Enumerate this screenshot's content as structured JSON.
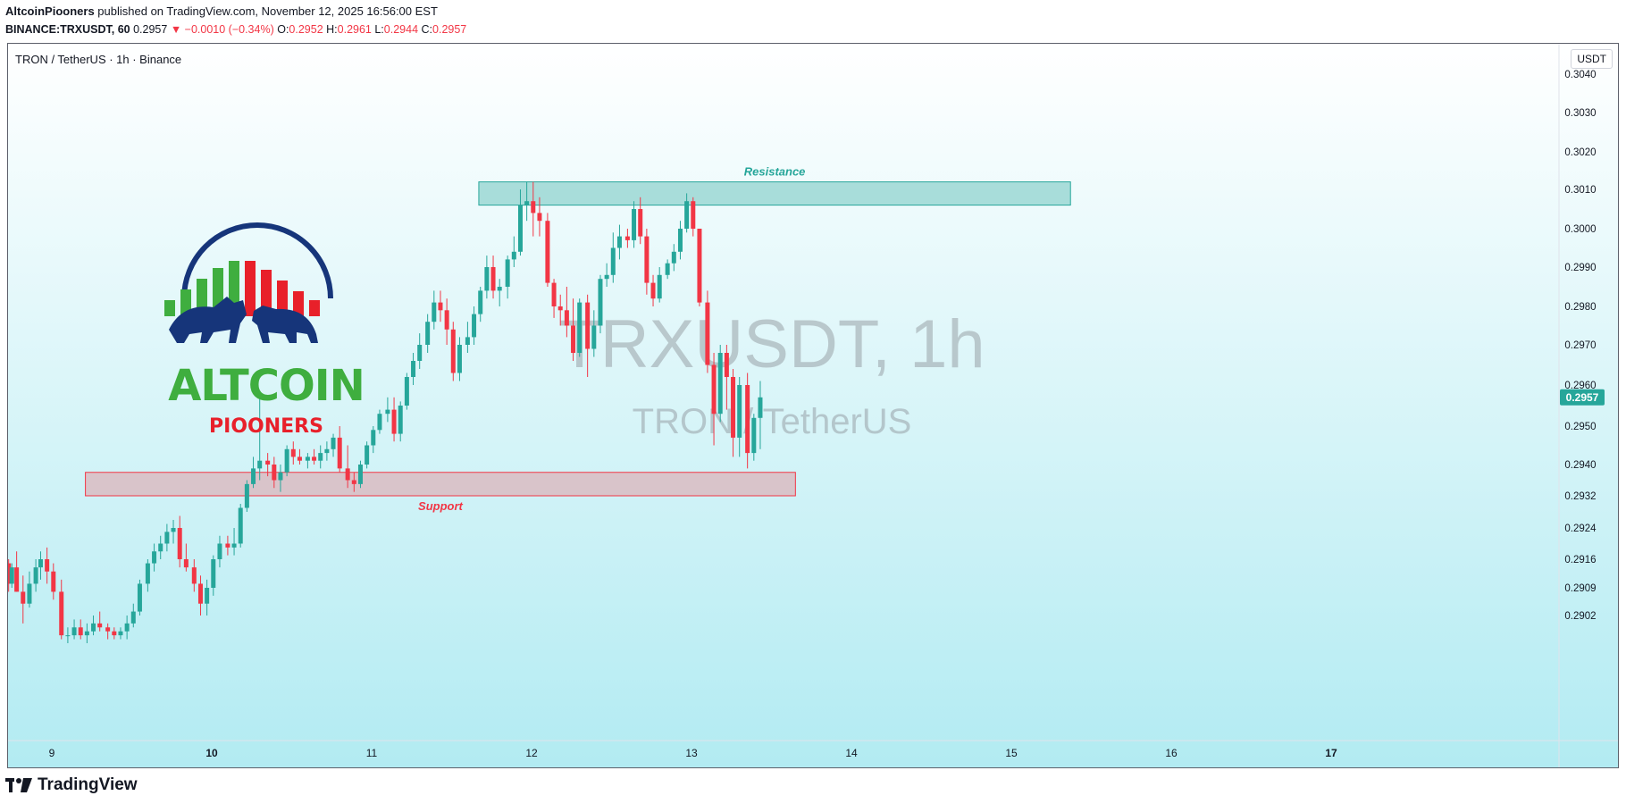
{
  "header": {
    "author": "AltcoinPiooners",
    "published": " published on TradingView.com, November 12, 2025 16:56:00 EST",
    "symbol": "BINANCE:TRXUSDT, 60",
    "price": "0.2957",
    "change": "▼ −0.0010 (−0.34%)",
    "ohlc": {
      "o_label": "O:",
      "o": "0.2952",
      "h_label": "H:",
      "h": "0.2961",
      "l_label": "L:",
      "l": "0.2944",
      "c_label": "C:",
      "c": "0.2957"
    }
  },
  "chart_title": "TRON / TetherUS · 1h · Binance",
  "logo": {
    "line1": "ALTCOIN",
    "line2": "PIOONERS"
  },
  "footer_brand": "TradingView",
  "colors": {
    "up": "#26a69a",
    "down": "#f23645",
    "resistance": "#26a69a",
    "support": "#f23645",
    "bg_top": "#ffffff",
    "bg_bottom": "#b2ebf2"
  },
  "chart_data": {
    "type": "candlestick",
    "title": "TRON / TetherUS · 1h · Binance",
    "watermark": [
      "TRXUSDT, 1h",
      "TRON / TetherUS"
    ],
    "unit": "USDT",
    "y_ticks": [
      "0.3040",
      "0.3030",
      "0.3020",
      "0.3010",
      "0.3000",
      "0.2990",
      "0.2980",
      "0.2970",
      "0.2960",
      "0.2950",
      "0.2940",
      "0.2932",
      "0.2924",
      "0.2916",
      "0.2909",
      "0.2902"
    ],
    "x_ticks": [
      {
        "label": "9",
        "x": 0.0
      },
      {
        "label": "10",
        "x": 1.0
      },
      {
        "label": "11",
        "x": 2.0
      },
      {
        "label": "12",
        "x": 3.0
      },
      {
        "label": "13",
        "x": 4.0
      },
      {
        "label": "14",
        "x": 5.0
      },
      {
        "label": "15",
        "x": 6.0
      },
      {
        "label": "16",
        "x": 7.0
      },
      {
        "label": "17",
        "x": 8.0
      }
    ],
    "last_price": "0.2957",
    "zones": [
      {
        "label": "Resistance",
        "x0": 2.67,
        "x1": 6.37,
        "y0": 0.3006,
        "y1": 0.3012
      },
      {
        "label": "Support",
        "x0": 0.21,
        "x1": 4.65,
        "y0": 0.2932,
        "y1": 0.2938
      }
    ],
    "candles": [
      {
        "t": -0.27,
        "o": 0.2915,
        "h": 0.2916,
        "l": 0.2908,
        "c": 0.291
      },
      {
        "t": -0.25,
        "o": 0.291,
        "h": 0.2915,
        "l": 0.2909,
        "c": 0.2914
      },
      {
        "t": -0.22,
        "o": 0.2914,
        "h": 0.2918,
        "l": 0.2908,
        "c": 0.2908
      },
      {
        "t": -0.18,
        "o": 0.2908,
        "h": 0.2912,
        "l": 0.29,
        "c": 0.2905
      },
      {
        "t": -0.14,
        "o": 0.2905,
        "h": 0.2913,
        "l": 0.2904,
        "c": 0.291
      },
      {
        "t": -0.1,
        "o": 0.291,
        "h": 0.2916,
        "l": 0.2908,
        "c": 0.2914
      },
      {
        "t": -0.07,
        "o": 0.2914,
        "h": 0.2918,
        "l": 0.2911,
        "c": 0.2916
      },
      {
        "t": -0.03,
        "o": 0.2916,
        "h": 0.2919,
        "l": 0.291,
        "c": 0.2913
      },
      {
        "t": 0.01,
        "o": 0.2913,
        "h": 0.2915,
        "l": 0.2906,
        "c": 0.2908
      },
      {
        "t": 0.06,
        "o": 0.2908,
        "h": 0.2911,
        "l": 0.2896,
        "c": 0.2897
      },
      {
        "t": 0.1,
        "o": 0.2897,
        "h": 0.2899,
        "l": 0.2895,
        "c": 0.2897
      },
      {
        "t": 0.14,
        "o": 0.2897,
        "h": 0.2901,
        "l": 0.2896,
        "c": 0.2899
      },
      {
        "t": 0.18,
        "o": 0.2899,
        "h": 0.2901,
        "l": 0.2896,
        "c": 0.2897
      },
      {
        "t": 0.22,
        "o": 0.2897,
        "h": 0.29,
        "l": 0.2895,
        "c": 0.2898
      },
      {
        "t": 0.26,
        "o": 0.2898,
        "h": 0.2902,
        "l": 0.2897,
        "c": 0.29
      },
      {
        "t": 0.3,
        "o": 0.29,
        "h": 0.2903,
        "l": 0.2898,
        "c": 0.2899
      },
      {
        "t": 0.35,
        "o": 0.2899,
        "h": 0.29,
        "l": 0.2896,
        "c": 0.2898
      },
      {
        "t": 0.39,
        "o": 0.2898,
        "h": 0.2899,
        "l": 0.2896,
        "c": 0.2897
      },
      {
        "t": 0.43,
        "o": 0.2897,
        "h": 0.2899,
        "l": 0.2896,
        "c": 0.2898
      },
      {
        "t": 0.47,
        "o": 0.2898,
        "h": 0.2902,
        "l": 0.2896,
        "c": 0.29
      },
      {
        "t": 0.51,
        "o": 0.29,
        "h": 0.2905,
        "l": 0.2899,
        "c": 0.2903
      },
      {
        "t": 0.55,
        "o": 0.2903,
        "h": 0.2911,
        "l": 0.2902,
        "c": 0.291
      },
      {
        "t": 0.6,
        "o": 0.291,
        "h": 0.2916,
        "l": 0.2908,
        "c": 0.2915
      },
      {
        "t": 0.64,
        "o": 0.2915,
        "h": 0.292,
        "l": 0.2913,
        "c": 0.2918
      },
      {
        "t": 0.68,
        "o": 0.2918,
        "h": 0.2922,
        "l": 0.2916,
        "c": 0.292
      },
      {
        "t": 0.72,
        "o": 0.292,
        "h": 0.2925,
        "l": 0.2918,
        "c": 0.2923
      },
      {
        "t": 0.76,
        "o": 0.2923,
        "h": 0.2926,
        "l": 0.292,
        "c": 0.2924
      },
      {
        "t": 0.8,
        "o": 0.2924,
        "h": 0.2927,
        "l": 0.2914,
        "c": 0.2916
      },
      {
        "t": 0.84,
        "o": 0.2916,
        "h": 0.292,
        "l": 0.2913,
        "c": 0.2914
      },
      {
        "t": 0.89,
        "o": 0.2914,
        "h": 0.2916,
        "l": 0.2908,
        "c": 0.291
      },
      {
        "t": 0.93,
        "o": 0.291,
        "h": 0.2912,
        "l": 0.2902,
        "c": 0.2905
      },
      {
        "t": 0.97,
        "o": 0.2905,
        "h": 0.2911,
        "l": 0.2902,
        "c": 0.2909
      },
      {
        "t": 1.01,
        "o": 0.2909,
        "h": 0.2917,
        "l": 0.2907,
        "c": 0.2916
      },
      {
        "t": 1.05,
        "o": 0.2916,
        "h": 0.2922,
        "l": 0.2914,
        "c": 0.292
      },
      {
        "t": 1.1,
        "o": 0.292,
        "h": 0.2922,
        "l": 0.2917,
        "c": 0.2919
      },
      {
        "t": 1.14,
        "o": 0.2919,
        "h": 0.2924,
        "l": 0.2917,
        "c": 0.292
      },
      {
        "t": 1.18,
        "o": 0.292,
        "h": 0.293,
        "l": 0.2919,
        "c": 0.2929
      },
      {
        "t": 1.22,
        "o": 0.2929,
        "h": 0.2936,
        "l": 0.2928,
        "c": 0.2935
      },
      {
        "t": 1.26,
        "o": 0.2935,
        "h": 0.2942,
        "l": 0.2934,
        "c": 0.2939
      },
      {
        "t": 1.3,
        "o": 0.2939,
        "h": 0.2958,
        "l": 0.2936,
        "c": 0.2941
      },
      {
        "t": 1.35,
        "o": 0.2941,
        "h": 0.2943,
        "l": 0.2937,
        "c": 0.294
      },
      {
        "t": 1.39,
        "o": 0.294,
        "h": 0.2942,
        "l": 0.2934,
        "c": 0.2936
      },
      {
        "t": 1.43,
        "o": 0.2936,
        "h": 0.294,
        "l": 0.2933,
        "c": 0.2938
      },
      {
        "t": 1.47,
        "o": 0.2938,
        "h": 0.2945,
        "l": 0.2937,
        "c": 0.2944
      },
      {
        "t": 1.51,
        "o": 0.2944,
        "h": 0.2946,
        "l": 0.294,
        "c": 0.2942
      },
      {
        "t": 1.55,
        "o": 0.2942,
        "h": 0.2944,
        "l": 0.294,
        "c": 0.2941
      },
      {
        "t": 1.6,
        "o": 0.2941,
        "h": 0.2943,
        "l": 0.2939,
        "c": 0.2942
      },
      {
        "t": 1.64,
        "o": 0.2942,
        "h": 0.2944,
        "l": 0.294,
        "c": 0.2941
      },
      {
        "t": 1.68,
        "o": 0.2941,
        "h": 0.2945,
        "l": 0.2939,
        "c": 0.2943
      },
      {
        "t": 1.72,
        "o": 0.2943,
        "h": 0.2946,
        "l": 0.2941,
        "c": 0.2944
      },
      {
        "t": 1.76,
        "o": 0.2944,
        "h": 0.2948,
        "l": 0.2942,
        "c": 0.2947
      },
      {
        "t": 1.8,
        "o": 0.2947,
        "h": 0.295,
        "l": 0.2938,
        "c": 0.2939
      },
      {
        "t": 1.85,
        "o": 0.2939,
        "h": 0.2945,
        "l": 0.2934,
        "c": 0.2936
      },
      {
        "t": 1.89,
        "o": 0.2936,
        "h": 0.2938,
        "l": 0.2933,
        "c": 0.2935
      },
      {
        "t": 1.93,
        "o": 0.2935,
        "h": 0.2941,
        "l": 0.2934,
        "c": 0.294
      },
      {
        "t": 1.97,
        "o": 0.294,
        "h": 0.2946,
        "l": 0.2939,
        "c": 0.2945
      },
      {
        "t": 2.01,
        "o": 0.2945,
        "h": 0.295,
        "l": 0.2943,
        "c": 0.2949
      },
      {
        "t": 2.05,
        "o": 0.2949,
        "h": 0.2954,
        "l": 0.2948,
        "c": 0.2953
      },
      {
        "t": 2.1,
        "o": 0.2953,
        "h": 0.2957,
        "l": 0.2951,
        "c": 0.2954
      },
      {
        "t": 2.14,
        "o": 0.2954,
        "h": 0.2957,
        "l": 0.2946,
        "c": 0.2948
      },
      {
        "t": 2.18,
        "o": 0.2948,
        "h": 0.2956,
        "l": 0.2946,
        "c": 0.2955
      },
      {
        "t": 2.22,
        "o": 0.2955,
        "h": 0.2963,
        "l": 0.2954,
        "c": 0.2962
      },
      {
        "t": 2.26,
        "o": 0.2962,
        "h": 0.2968,
        "l": 0.296,
        "c": 0.2966
      },
      {
        "t": 2.3,
        "o": 0.2966,
        "h": 0.2973,
        "l": 0.2964,
        "c": 0.297
      },
      {
        "t": 2.35,
        "o": 0.297,
        "h": 0.2978,
        "l": 0.2968,
        "c": 0.2976
      },
      {
        "t": 2.39,
        "o": 0.2976,
        "h": 0.2984,
        "l": 0.2974,
        "c": 0.2981
      },
      {
        "t": 2.43,
        "o": 0.2981,
        "h": 0.2984,
        "l": 0.2976,
        "c": 0.2979
      },
      {
        "t": 2.47,
        "o": 0.2979,
        "h": 0.2982,
        "l": 0.297,
        "c": 0.2974
      },
      {
        "t": 2.51,
        "o": 0.2974,
        "h": 0.2976,
        "l": 0.2961,
        "c": 0.2963
      },
      {
        "t": 2.55,
        "o": 0.2963,
        "h": 0.2972,
        "l": 0.2961,
        "c": 0.297
      },
      {
        "t": 2.6,
        "o": 0.297,
        "h": 0.2976,
        "l": 0.2968,
        "c": 0.2972
      },
      {
        "t": 2.64,
        "o": 0.2972,
        "h": 0.298,
        "l": 0.297,
        "c": 0.2978
      },
      {
        "t": 2.68,
        "o": 0.2978,
        "h": 0.2985,
        "l": 0.2976,
        "c": 0.2984
      },
      {
        "t": 2.72,
        "o": 0.2984,
        "h": 0.2993,
        "l": 0.2982,
        "c": 0.299
      },
      {
        "t": 2.76,
        "o": 0.299,
        "h": 0.2993,
        "l": 0.2982,
        "c": 0.2984
      },
      {
        "t": 2.8,
        "o": 0.2984,
        "h": 0.2987,
        "l": 0.298,
        "c": 0.2985
      },
      {
        "t": 2.85,
        "o": 0.2985,
        "h": 0.2993,
        "l": 0.2982,
        "c": 0.2992
      },
      {
        "t": 2.89,
        "o": 0.2992,
        "h": 0.2998,
        "l": 0.299,
        "c": 0.2994
      },
      {
        "t": 2.93,
        "o": 0.2994,
        "h": 0.301,
        "l": 0.2993,
        "c": 0.3006
      },
      {
        "t": 2.97,
        "o": 0.3006,
        "h": 0.3012,
        "l": 0.3002,
        "c": 0.3007
      },
      {
        "t": 3.01,
        "o": 0.3007,
        "h": 0.3012,
        "l": 0.2998,
        "c": 0.3004
      },
      {
        "t": 3.05,
        "o": 0.3004,
        "h": 0.3008,
        "l": 0.2998,
        "c": 0.3002
      },
      {
        "t": 3.1,
        "o": 0.3002,
        "h": 0.3004,
        "l": 0.2985,
        "c": 0.2986
      },
      {
        "t": 3.14,
        "o": 0.2986,
        "h": 0.2987,
        "l": 0.2977,
        "c": 0.298
      },
      {
        "t": 3.18,
        "o": 0.298,
        "h": 0.2983,
        "l": 0.2975,
        "c": 0.2979
      },
      {
        "t": 3.22,
        "o": 0.2979,
        "h": 0.2985,
        "l": 0.2972,
        "c": 0.2975
      },
      {
        "t": 3.26,
        "o": 0.2975,
        "h": 0.2982,
        "l": 0.2966,
        "c": 0.2968
      },
      {
        "t": 3.3,
        "o": 0.2968,
        "h": 0.2982,
        "l": 0.2967,
        "c": 0.2981
      },
      {
        "t": 3.35,
        "o": 0.2981,
        "h": 0.2983,
        "l": 0.2962,
        "c": 0.2969
      },
      {
        "t": 3.39,
        "o": 0.2969,
        "h": 0.2979,
        "l": 0.2967,
        "c": 0.2975
      },
      {
        "t": 3.43,
        "o": 0.2975,
        "h": 0.2988,
        "l": 0.2973,
        "c": 0.2987
      },
      {
        "t": 3.47,
        "o": 0.2987,
        "h": 0.2991,
        "l": 0.2985,
        "c": 0.2988
      },
      {
        "t": 3.51,
        "o": 0.2988,
        "h": 0.2999,
        "l": 0.2986,
        "c": 0.2995
      },
      {
        "t": 3.55,
        "o": 0.2995,
        "h": 0.3001,
        "l": 0.2992,
        "c": 0.2998
      },
      {
        "t": 3.6,
        "o": 0.2998,
        "h": 0.3,
        "l": 0.2995,
        "c": 0.2997
      },
      {
        "t": 3.64,
        "o": 0.2997,
        "h": 0.3007,
        "l": 0.2995,
        "c": 0.3005
      },
      {
        "t": 3.68,
        "o": 0.3005,
        "h": 0.3008,
        "l": 0.2996,
        "c": 0.2998
      },
      {
        "t": 3.72,
        "o": 0.2998,
        "h": 0.3,
        "l": 0.2983,
        "c": 0.2986
      },
      {
        "t": 3.76,
        "o": 0.2986,
        "h": 0.2988,
        "l": 0.298,
        "c": 0.2982
      },
      {
        "t": 3.8,
        "o": 0.2982,
        "h": 0.299,
        "l": 0.2981,
        "c": 0.2988
      },
      {
        "t": 3.85,
        "o": 0.2988,
        "h": 0.2992,
        "l": 0.2987,
        "c": 0.2991
      },
      {
        "t": 3.89,
        "o": 0.2991,
        "h": 0.2996,
        "l": 0.2989,
        "c": 0.2994
      },
      {
        "t": 3.93,
        "o": 0.2994,
        "h": 0.3002,
        "l": 0.2992,
        "c": 0.3
      },
      {
        "t": 3.97,
        "o": 0.3,
        "h": 0.3009,
        "l": 0.2999,
        "c": 0.3007
      },
      {
        "t": 4.01,
        "o": 0.3007,
        "h": 0.3008,
        "l": 0.2998,
        "c": 0.3
      },
      {
        "t": 4.05,
        "o": 0.3,
        "h": 0.3,
        "l": 0.298,
        "c": 0.2981
      },
      {
        "t": 4.1,
        "o": 0.2981,
        "h": 0.2984,
        "l": 0.2963,
        "c": 0.2965
      },
      {
        "t": 4.14,
        "o": 0.2965,
        "h": 0.2968,
        "l": 0.2945,
        "c": 0.2953
      },
      {
        "t": 4.18,
        "o": 0.2953,
        "h": 0.297,
        "l": 0.2951,
        "c": 0.2968
      },
      {
        "t": 4.22,
        "o": 0.2968,
        "h": 0.297,
        "l": 0.2954,
        "c": 0.2962
      },
      {
        "t": 4.26,
        "o": 0.2962,
        "h": 0.2964,
        "l": 0.2942,
        "c": 0.2947
      },
      {
        "t": 4.3,
        "o": 0.2947,
        "h": 0.2962,
        "l": 0.2942,
        "c": 0.296
      },
      {
        "t": 4.35,
        "o": 0.296,
        "h": 0.2963,
        "l": 0.2939,
        "c": 0.2943
      },
      {
        "t": 4.39,
        "o": 0.2943,
        "h": 0.2953,
        "l": 0.2941,
        "c": 0.2952
      },
      {
        "t": 4.43,
        "o": 0.2952,
        "h": 0.2961,
        "l": 0.2944,
        "c": 0.2957
      }
    ]
  }
}
